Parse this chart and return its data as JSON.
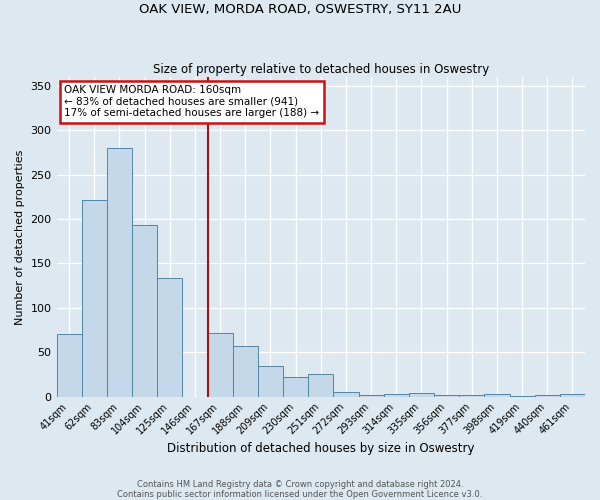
{
  "title": "OAK VIEW, MORDA ROAD, OSWESTRY, SY11 2AU",
  "subtitle": "Size of property relative to detached houses in Oswestry",
  "xlabel": "Distribution of detached houses by size in Oswestry",
  "ylabel": "Number of detached properties",
  "bar_labels": [
    "41sqm",
    "62sqm",
    "83sqm",
    "104sqm",
    "125sqm",
    "146sqm",
    "167sqm",
    "188sqm",
    "209sqm",
    "230sqm",
    "251sqm",
    "272sqm",
    "293sqm",
    "314sqm",
    "335sqm",
    "356sqm",
    "377sqm",
    "398sqm",
    "419sqm",
    "440sqm",
    "461sqm"
  ],
  "bar_values": [
    70,
    222,
    280,
    193,
    134,
    0,
    72,
    57,
    34,
    22,
    25,
    5,
    2,
    3,
    4,
    2,
    2,
    3,
    1,
    2,
    3
  ],
  "bar_color": "#c5d8ea",
  "bar_edge_color": "#4f86a8",
  "annotation_lines": [
    "OAK VIEW MORDA ROAD: 160sqm",
    "← 83% of detached houses are smaller (941)",
    "17% of semi-detached houses are larger (188) →"
  ],
  "ylim": [
    0,
    360
  ],
  "yticks": [
    0,
    50,
    100,
    150,
    200,
    250,
    300,
    350
  ],
  "vline_x": 5.5,
  "vline_color": "#aa1111",
  "box_edge_color": "#cc1111",
  "background_color": "#dde8f0",
  "grid_color": "#ffffff",
  "footer_lines": [
    "Contains HM Land Registry data © Crown copyright and database right 2024.",
    "Contains public sector information licensed under the Open Government Licence v3.0."
  ]
}
